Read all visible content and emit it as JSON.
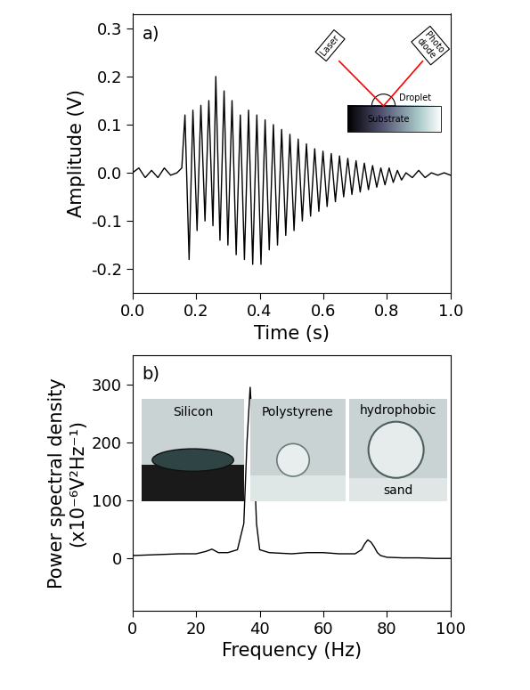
{
  "chart_data": [
    {
      "type": "line",
      "title": "a)",
      "xlabel": "Time (s)",
      "ylabel": "Amplitude (V)",
      "x": [
        0.0,
        0.02,
        0.04,
        0.06,
        0.08,
        0.1,
        0.12,
        0.14,
        0.155,
        0.165,
        0.178,
        0.19,
        0.203,
        0.215,
        0.228,
        0.24,
        0.253,
        0.262,
        0.275,
        0.288,
        0.3,
        0.313,
        0.326,
        0.339,
        0.352,
        0.365,
        0.378,
        0.391,
        0.404,
        0.417,
        0.43,
        0.443,
        0.456,
        0.469,
        0.482,
        0.495,
        0.508,
        0.521,
        0.534,
        0.547,
        0.56,
        0.573,
        0.586,
        0.599,
        0.612,
        0.625,
        0.638,
        0.651,
        0.664,
        0.677,
        0.69,
        0.703,
        0.716,
        0.729,
        0.742,
        0.755,
        0.768,
        0.781,
        0.794,
        0.807,
        0.82,
        0.833,
        0.846,
        0.86,
        0.88,
        0.9,
        0.92,
        0.94,
        0.96,
        0.98,
        1.0
      ],
      "values": [
        0.0,
        0.01,
        -0.01,
        0.005,
        -0.01,
        0.01,
        -0.005,
        0.0,
        0.01,
        0.12,
        -0.18,
        0.13,
        -0.12,
        0.14,
        -0.1,
        0.15,
        -0.11,
        0.2,
        -0.14,
        0.17,
        -0.15,
        0.15,
        -0.17,
        0.12,
        -0.18,
        0.13,
        -0.19,
        0.12,
        -0.19,
        0.11,
        -0.16,
        0.1,
        -0.15,
        0.09,
        -0.13,
        0.08,
        -0.12,
        0.07,
        -0.1,
        0.06,
        -0.09,
        0.05,
        -0.08,
        0.045,
        -0.07,
        0.04,
        -0.06,
        0.035,
        -0.05,
        0.03,
        -0.045,
        0.025,
        -0.04,
        0.02,
        -0.035,
        0.015,
        -0.03,
        0.01,
        -0.025,
        0.01,
        -0.02,
        0.005,
        -0.015,
        0.0,
        -0.01,
        0.005,
        -0.01,
        0.0,
        -0.005,
        0.0,
        -0.005
      ],
      "color": "#000000",
      "xlim": [
        0.0,
        1.0
      ],
      "xticks": [
        0.0,
        0.2,
        0.4,
        0.6,
        0.8,
        1.0
      ],
      "ylim": [
        -0.25,
        0.33
      ],
      "yticks": [
        -0.2,
        -0.1,
        0.0,
        0.1,
        0.2,
        0.3
      ],
      "annotations": [
        "Laser",
        "Photo\ndiode",
        "Droplet",
        "Substrate"
      ]
    },
    {
      "type": "line",
      "title": "b)",
      "xlabel": "Frequency (Hz)",
      "ylabel": "Power spectral density\n(x10⁻⁶V²Hz⁻¹)",
      "x": [
        0,
        5,
        10,
        15,
        20,
        23,
        25,
        27,
        30,
        33,
        35,
        36,
        37,
        38,
        39,
        40,
        43,
        50,
        55,
        60,
        65,
        70,
        72,
        73,
        74,
        75,
        76,
        77,
        78,
        80,
        85,
        90,
        95,
        100
      ],
      "values": [
        5,
        6,
        7,
        8,
        8,
        12,
        16,
        10,
        10,
        15,
        60,
        200,
        295,
        200,
        60,
        15,
        10,
        8,
        10,
        10,
        8,
        8,
        15,
        25,
        32,
        28,
        20,
        10,
        5,
        2,
        1,
        1,
        0,
        0
      ],
      "color": "#000000",
      "xlim": [
        0,
        100
      ],
      "xticks": [
        0,
        20,
        40,
        60,
        80,
        100
      ],
      "ylim": [
        -90,
        350
      ],
      "yticks": [
        0,
        100,
        200,
        300
      ],
      "annotations": [
        "Silicon",
        "Polystyrene",
        "hydrophobic",
        "sand"
      ]
    }
  ]
}
